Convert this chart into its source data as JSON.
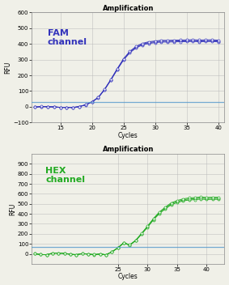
{
  "title": "Amplification",
  "fam_label": "FAM\nchannel",
  "hex_label": "HEX\nchannel",
  "xlabel": "Cycles",
  "ylabel": "RFU",
  "fam_color": "#3333bb",
  "hex_color": "#22aa22",
  "threshold_color": "#5599cc",
  "threshold2_color": "#5599cc",
  "fam_ylim": [
    -100,
    600
  ],
  "fam_yticks": [
    -100,
    0,
    100,
    200,
    300,
    400,
    500,
    600
  ],
  "hex_ylim": [
    -100,
    1000
  ],
  "hex_yticks": [
    0,
    100,
    200,
    300,
    400,
    500,
    600,
    700,
    800,
    900
  ],
  "xlim1": [
    10.5,
    41
  ],
  "xlim2": [
    10.5,
    43
  ],
  "xticks1": [
    15,
    20,
    25,
    30,
    35,
    40
  ],
  "xticks2": [
    25,
    30,
    35,
    40
  ],
  "fam_threshold": 32,
  "hex_threshold": 72,
  "bg_color": "#f0f0e8",
  "grid_color": "#bbbbbb",
  "title_fontsize": 6,
  "label_fontsize": 5.5,
  "tick_fontsize": 5,
  "channel_fontsize": 8
}
